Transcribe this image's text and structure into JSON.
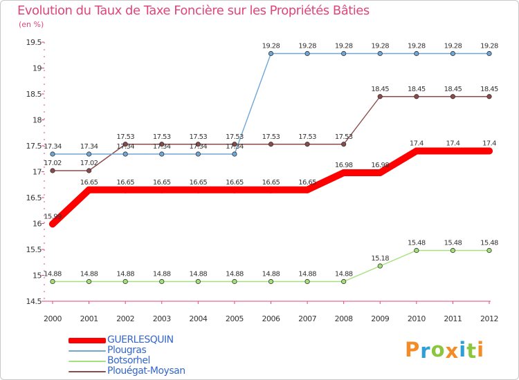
{
  "header": {
    "title": "Evolution du Taux de Taxe Foncière sur les Propriétés Bâties",
    "unit": "(en %)"
  },
  "logo": {
    "text": "Proxiti",
    "colors": [
      "#f28c28",
      "#2e9fd6",
      "#8cc63f",
      "#f28c28",
      "#2e9fd6",
      "#8cc63f",
      "#f28c28"
    ]
  },
  "chart_data": {
    "type": "line",
    "title": "Evolution du Taux de Taxe Foncière sur les Propriétés Bâties",
    "ylabel": "(en %)",
    "xlabel": "",
    "x": [
      "2000",
      "2001",
      "2002",
      "2003",
      "2004",
      "2005",
      "2006",
      "2007",
      "2008",
      "2009",
      "2010",
      "2011",
      "2012"
    ],
    "yticks": [
      "14.5",
      "15",
      "15.5",
      "16",
      "16.5",
      "17",
      "17.5",
      "18",
      "18.5",
      "19",
      "19.5"
    ],
    "ylim": [
      14.5,
      19.5
    ],
    "grid": false,
    "legend_position": "bottom-left",
    "series": [
      {
        "name": "GUERLESQUIN",
        "color": "#ff0000",
        "values": [
          15.99,
          16.65,
          16.65,
          16.65,
          16.65,
          16.65,
          16.65,
          16.65,
          16.98,
          16.98,
          17.4,
          17.4,
          17.4
        ],
        "labels": [
          "15.99",
          "16.65",
          "16.65",
          "16.65",
          "16.65",
          "16.65",
          "16.65",
          "16.65",
          "16.98",
          "16.98",
          "17.4",
          "17.4",
          "17.4"
        ]
      },
      {
        "name": "Plougras",
        "color": "#6fa6d6",
        "values": [
          17.34,
          17.34,
          17.34,
          17.34,
          17.34,
          17.34,
          19.28,
          19.28,
          19.28,
          19.28,
          19.28,
          19.28,
          19.28
        ],
        "labels": [
          "17.34",
          "17.34",
          "17.34",
          "17.34",
          "17.34",
          "17.34",
          "19.28",
          "19.28",
          "19.28",
          "19.28",
          "19.28",
          "19.28",
          "19.28"
        ]
      },
      {
        "name": "Botsorhel",
        "color": "#a6e07a",
        "values": [
          14.88,
          14.88,
          14.88,
          14.88,
          14.88,
          14.88,
          14.88,
          14.88,
          14.88,
          15.18,
          15.48,
          15.48,
          15.48
        ],
        "labels": [
          "14.88",
          "14.88",
          "14.88",
          "14.88",
          "14.88",
          "14.88",
          "14.88",
          "14.88",
          "14.88",
          "15.18",
          "15.48",
          "15.48",
          "15.48"
        ]
      },
      {
        "name": "Plouégat-Moysan",
        "color": "#8c4a4a",
        "values": [
          17.02,
          17.02,
          17.53,
          17.53,
          17.53,
          17.53,
          17.53,
          17.53,
          17.53,
          18.45,
          18.45,
          18.45,
          18.45
        ],
        "labels": [
          "17.02",
          "17.02",
          "17.53",
          "17.53",
          "17.53",
          "17.53",
          "17.53",
          "17.53",
          "17.53",
          "18.45",
          "18.45",
          "18.45",
          "18.45"
        ]
      }
    ]
  }
}
